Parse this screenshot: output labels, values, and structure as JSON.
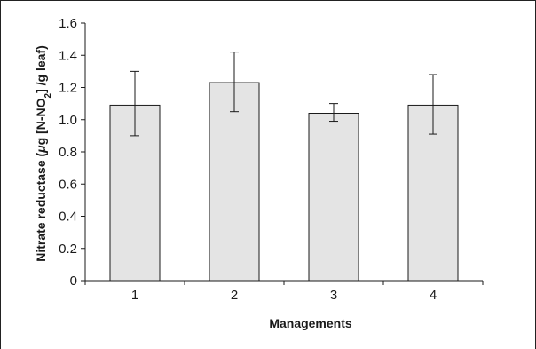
{
  "chart_data": {
    "type": "bar",
    "categories": [
      "1",
      "2",
      "3",
      "4"
    ],
    "values": [
      1.09,
      1.23,
      1.04,
      1.09
    ],
    "error_low": [
      0.9,
      1.05,
      0.99,
      0.91
    ],
    "error_high": [
      1.3,
      1.42,
      1.1,
      1.28
    ],
    "title": "",
    "xlabel": "Managements",
    "ylabel_prefix": "Nitrate reductase (",
    "ylabel_mu": "μ",
    "ylabel_mid": "g [N-NO",
    "ylabel_sub": "2",
    "ylabel_suffix": "] /g leaf)",
    "ylim": [
      0,
      1.6
    ],
    "yticks": [
      "0",
      "0.2",
      "0.4",
      "0.6",
      "0.8",
      "1.0",
      "1.2",
      "1.4",
      "1.6"
    ],
    "grid": false,
    "legend": "none",
    "bar_color": "#e4e4e4",
    "edge_color": "#1a1a1a"
  }
}
